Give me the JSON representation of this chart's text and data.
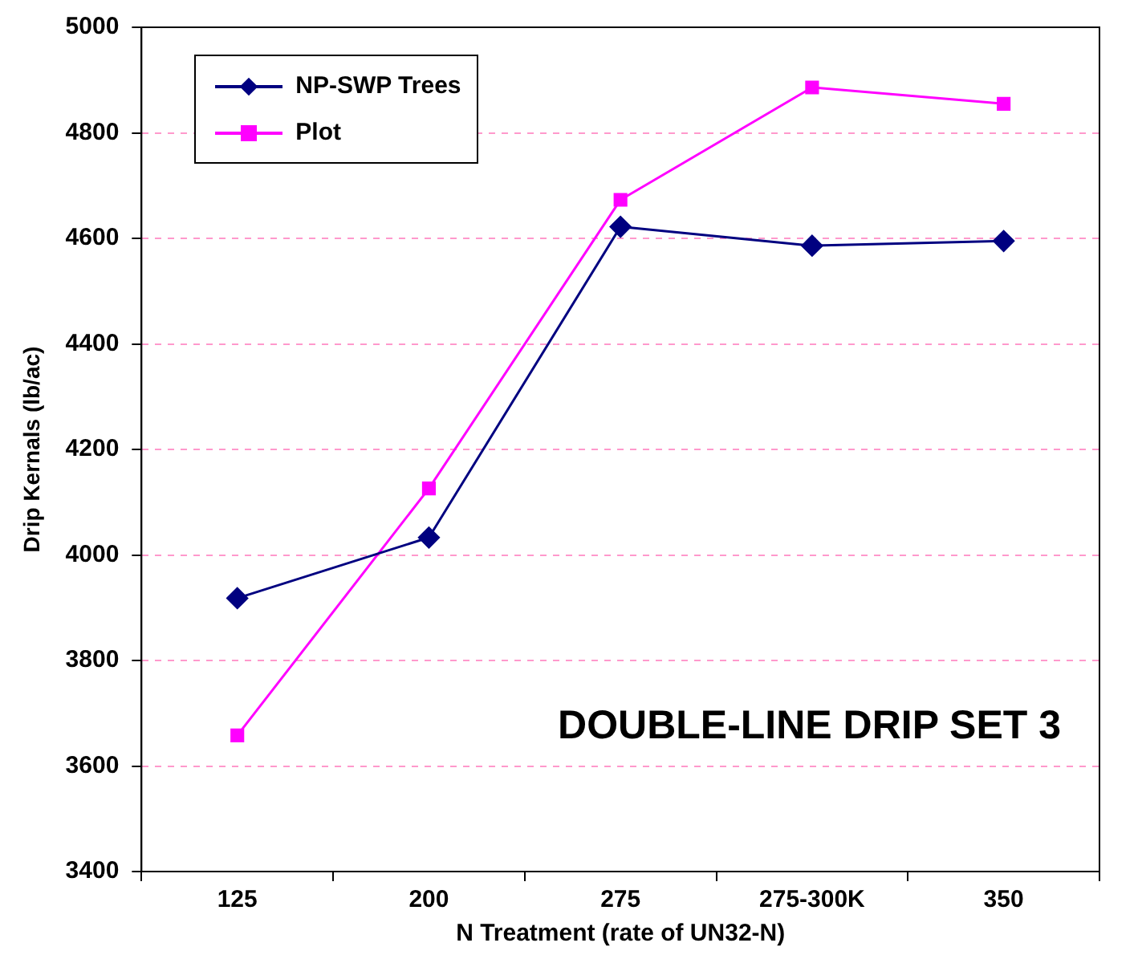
{
  "chart_data": {
    "type": "line",
    "xlabel": "N Treatment (rate of UN32-N)",
    "ylabel": "Drip Kernals (lb/ac)",
    "categories": [
      "125",
      "200",
      "275",
      "275-300K",
      "350"
    ],
    "series": [
      {
        "name": "NP-SWP Trees",
        "color": "#000080",
        "marker": "diamond",
        "values": [
          3918,
          4033,
          4622,
          4586,
          4595
        ]
      },
      {
        "name": "Plot",
        "color": "#ff00ff",
        "marker": "square",
        "values": [
          3658,
          4126,
          4673,
          4886,
          4855
        ]
      }
    ],
    "ylim": [
      3400,
      5000
    ],
    "yticks": [
      3400,
      3600,
      3800,
      4000,
      4200,
      4400,
      4600,
      4800,
      5000
    ],
    "grid": "y",
    "legend": "top left",
    "annotations": [
      "DOUBLE-LINE DRIP SET 3"
    ]
  }
}
